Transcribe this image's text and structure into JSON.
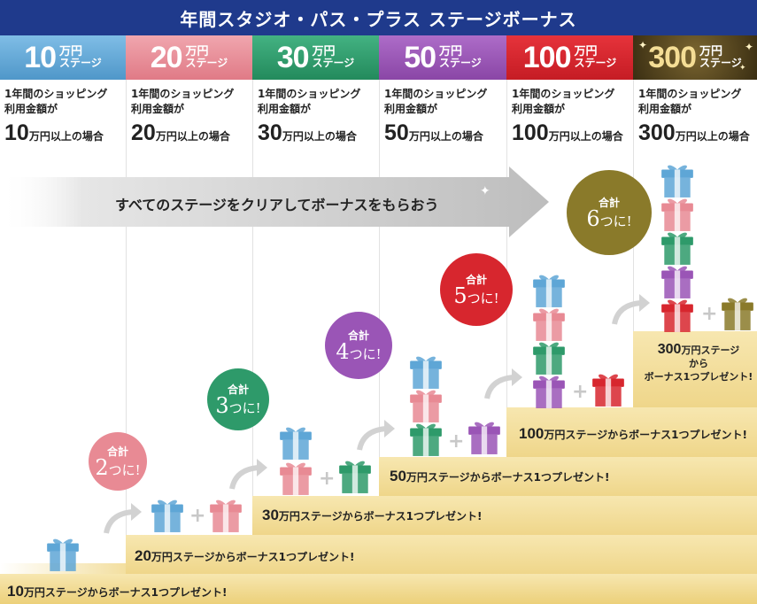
{
  "header": {
    "title": "年間スタジオ・パス・プラス ステージボーナス"
  },
  "stages": [
    {
      "num": "10",
      "unit_top": "万円",
      "unit_bottom": "ステージ",
      "color": "#5ea6d6",
      "desc_line1": "1年間のショッピング",
      "desc_line2": "利用金額が",
      "amount": "10",
      "amount_suffix": "万円以上の場合"
    },
    {
      "num": "20",
      "unit_top": "万円",
      "unit_bottom": "ステージ",
      "color": "#e88a94",
      "desc_line1": "1年間のショッピング",
      "desc_line2": "利用金額が",
      "amount": "20",
      "amount_suffix": "万円以上の場合"
    },
    {
      "num": "30",
      "unit_top": "万円",
      "unit_bottom": "ステージ",
      "color": "#2e9a6a",
      "desc_line1": "1年間のショッピング",
      "desc_line2": "利用金額が",
      "amount": "30",
      "amount_suffix": "万円以上の場合"
    },
    {
      "num": "50",
      "unit_top": "万円",
      "unit_bottom": "ステージ",
      "color": "#9a55b6",
      "desc_line1": "1年間のショッピング",
      "desc_line2": "利用金額が",
      "amount": "50",
      "amount_suffix": "万円以上の場合"
    },
    {
      "num": "100",
      "unit_top": "万円",
      "unit_bottom": "ステージ",
      "color": "#d7262e",
      "desc_line1": "1年間のショッピング",
      "desc_line2": "利用金額が",
      "amount": "100",
      "amount_suffix": "万円以上の場合"
    },
    {
      "num": "300",
      "unit_top": "万円",
      "unit_bottom": "ステージ",
      "color": "#5a4a1e",
      "desc_line1": "1年間のショッピング",
      "desc_line2": "利用金額が",
      "amount": "300",
      "amount_suffix": "万円以上の場合"
    }
  ],
  "banner": {
    "text": "すべてのステージをクリアしてボーナスをもらおう"
  },
  "steps": [
    {
      "n": "10",
      "label": "万円ステージからボーナス1つプレゼント!"
    },
    {
      "n": "20",
      "label": "万円ステージからボーナス1つプレゼント!"
    },
    {
      "n": "30",
      "label": "万円ステージからボーナス1つプレゼント!"
    },
    {
      "n": "50",
      "label": "万円ステージからボーナス1つプレゼント!"
    },
    {
      "n": "100",
      "label": "万円ステージからボーナス1つプレゼント!"
    }
  ],
  "top_step": {
    "n": "300",
    "line1": "万円ステージ",
    "line2": "から",
    "line3": "ボーナス1つプレゼント!"
  },
  "bubbles": [
    {
      "kei": "合計",
      "count": "2",
      "suffix": "つに!",
      "color": "#e88a94"
    },
    {
      "kei": "合計",
      "count": "3",
      "suffix": "つに!",
      "color": "#2e9a6a"
    },
    {
      "kei": "合計",
      "count": "4",
      "suffix": "つに!",
      "color": "#9a55b6"
    },
    {
      "kei": "合計",
      "count": "5",
      "suffix": "つに!",
      "color": "#d7262e"
    },
    {
      "kei": "合計",
      "count": "6",
      "suffix": "つに!",
      "color": "#8a7a2a"
    }
  ],
  "colors": {
    "header_bg": "#1f3a8c",
    "stair_gold": "#f1d98a",
    "gift_blue": "#5ea6d6",
    "gift_pink": "#e88a94",
    "gift_green": "#2e9a6a",
    "gift_purple": "#9a55b6",
    "gift_red": "#d7262e",
    "gift_olive": "#8a7a2a"
  },
  "icons": [
    "gift-icon",
    "plus-icon",
    "curved-arrow-icon",
    "sparkle-icon"
  ]
}
